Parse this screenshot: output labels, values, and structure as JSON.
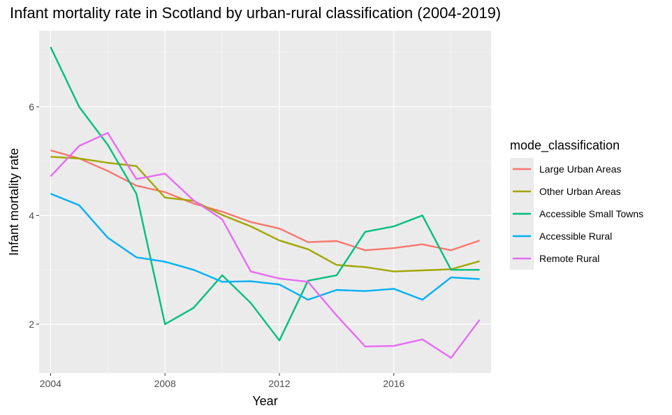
{
  "chart_data": {
    "type": "line",
    "title": "Infant mortality rate in Scotland by urban-rural classification (2004-2019)",
    "xlabel": "Year",
    "ylabel": "Infant mortality rate",
    "xlim": [
      2003.6,
      2019.4
    ],
    "ylim": [
      1.1,
      7.4
    ],
    "x_ticks": [
      2004,
      2008,
      2012,
      2016
    ],
    "y_ticks": [
      2,
      4,
      6
    ],
    "grid": true,
    "legend_title": "mode_classification",
    "legend_position": "right",
    "x": [
      2004,
      2005,
      2006,
      2007,
      2008,
      2009,
      2010,
      2011,
      2012,
      2013,
      2014,
      2015,
      2016,
      2017,
      2018,
      2019
    ],
    "series": [
      {
        "name": "Large Urban Areas",
        "color": "#F8766D",
        "values": [
          5.2,
          5.05,
          4.82,
          4.55,
          4.43,
          4.22,
          4.07,
          3.88,
          3.76,
          3.51,
          3.53,
          3.36,
          3.4,
          3.47,
          3.36,
          3.54
        ]
      },
      {
        "name": "Other Urban Areas",
        "color": "#A3A500",
        "values": [
          5.08,
          5.05,
          4.97,
          4.91,
          4.33,
          4.27,
          4.01,
          3.8,
          3.54,
          3.38,
          3.09,
          3.05,
          2.97,
          2.99,
          3.01,
          3.16
        ]
      },
      {
        "name": "Accessible Small Towns",
        "color": "#00BF7D",
        "values": [
          7.1,
          6.0,
          5.3,
          4.4,
          2.0,
          2.3,
          2.9,
          2.39,
          1.7,
          2.8,
          2.9,
          3.7,
          3.8,
          4.0,
          3.0,
          3.0
        ]
      },
      {
        "name": "Accessible Rural",
        "color": "#00B0F6",
        "values": [
          4.4,
          4.19,
          3.59,
          3.23,
          3.15,
          3.0,
          2.78,
          2.79,
          2.73,
          2.45,
          2.63,
          2.61,
          2.65,
          2.45,
          2.86,
          2.83
        ]
      },
      {
        "name": "Remote Rural",
        "color": "#E76BF3",
        "values": [
          4.72,
          5.28,
          5.52,
          4.67,
          4.77,
          4.28,
          3.93,
          2.97,
          2.84,
          2.78,
          2.16,
          1.59,
          1.6,
          1.72,
          1.38,
          2.08
        ]
      }
    ]
  }
}
